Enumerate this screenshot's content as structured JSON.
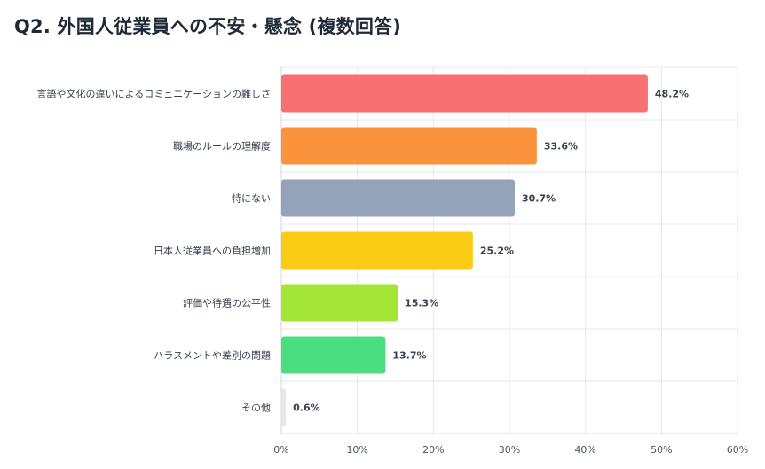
{
  "title": "Q2. 外国人従業員への不安・懸念 (複数回答)",
  "chart_data": {
    "type": "bar",
    "orientation": "horizontal",
    "title": "Q2. 外国人従業員への不安・懸念 (複数回答)",
    "categories": [
      "言語や文化の違いによるコミュニケーションの難しさ",
      "職場のルールの理解度",
      "特にない",
      "日本人従業員への負担増加",
      "評価や待遇の公平性",
      "ハラスメントや差別の問題",
      "その他"
    ],
    "values": [
      48.2,
      33.6,
      30.7,
      25.2,
      15.3,
      13.7,
      0.6
    ],
    "value_labels": [
      "48.2%",
      "33.6%",
      "30.7%",
      "25.2%",
      "15.3%",
      "13.7%",
      "0.6%"
    ],
    "colors": [
      "#f87171",
      "#fb923c",
      "#94a3b8",
      "#facc15",
      "#a3e635",
      "#4ade80",
      "#e5e7eb"
    ],
    "xlim": [
      0,
      60
    ],
    "xticks": [
      0,
      10,
      20,
      30,
      40,
      50,
      60
    ],
    "xtick_labels": [
      "0%",
      "10%",
      "20%",
      "30%",
      "40%",
      "50%",
      "60%"
    ],
    "grid": true,
    "legend": "none"
  }
}
